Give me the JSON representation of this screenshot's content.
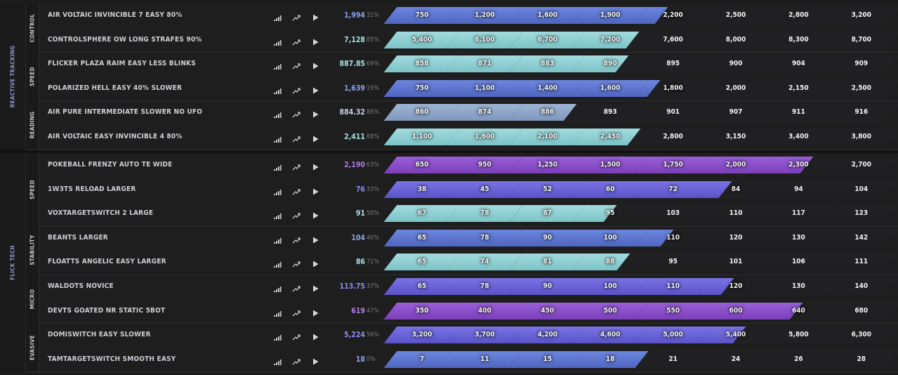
{
  "colors": {
    "blue": "#5d76cf",
    "teal": "#93d3d6",
    "slate": "#8ea6c8",
    "purple": "#8b4fc9",
    "indigo": "#6a63d9"
  },
  "icons": {
    "signal": "signal-bars-icon",
    "trend": "trending-up-icon",
    "play": "play-icon"
  },
  "sections": [
    {
      "label": "REACTIVE TRACKING",
      "groups": [
        {
          "label": "CONTROL",
          "rows": [
            {
              "name": "AIR VOLTAIC INVINCIBLE 7 EASY 80%",
              "score": "1,994",
              "pct": "31%",
              "score_color": "#8aa3ea",
              "color": "blue",
              "fill": 4.31,
              "thresholds": [
                "750",
                "1,200",
                "1,600",
                "1,900",
                "2,200",
                "2,500",
                "2,800",
                "3,200"
              ]
            },
            {
              "name": "CONTROLSPHERE OW LONG STRAFES 90%",
              "score": "7,128",
              "pct": "85%",
              "score_color": "#a6e2e4",
              "color": "teal",
              "fill": 3.85,
              "thresholds": [
                "5,400",
                "6,100",
                "6,700",
                "7,200",
                "7,600",
                "8,000",
                "8,300",
                "8,700"
              ]
            }
          ]
        },
        {
          "label": "SPEED",
          "rows": [
            {
              "name": "FLICKER PLAZA RAIM EASY LESS BLINKS",
              "score": "887.85",
              "pct": "69%",
              "score_color": "#a6e2e4",
              "color": "teal",
              "fill": 3.69,
              "thresholds": [
                "858",
                "871",
                "883",
                "890",
                "895",
                "900",
                "904",
                "909"
              ]
            },
            {
              "name": "POLARIZED HELL EASY 40% SLOWER",
              "score": "1,639",
              "pct": "19%",
              "score_color": "#8aa3ea",
              "color": "blue",
              "fill": 4.19,
              "thresholds": [
                "750",
                "1,100",
                "1,400",
                "1,600",
                "1,800",
                "2,000",
                "2,150",
                "2,500"
              ]
            }
          ]
        },
        {
          "label": "READING",
          "rows": [
            {
              "name": "AIR PURE INTERMEDIATE SLOWER NO UFO",
              "score": "884.32",
              "pct": "86%",
              "score_color": "#c3cde6",
              "color": "slate",
              "fill": 2.86,
              "thresholds": [
                "860",
                "874",
                "886",
                "893",
                "901",
                "907",
                "911",
                "916"
              ]
            },
            {
              "name": "AIR VOLTAIC EASY INVINCIBLE 4 80%",
              "score": "2,411",
              "pct": "88%",
              "score_color": "#a6e2e4",
              "color": "teal",
              "fill": 3.88,
              "thresholds": [
                "1,100",
                "1,600",
                "2,100",
                "2,450",
                "2,800",
                "3,150",
                "3,400",
                "3,800"
              ]
            }
          ]
        }
      ]
    },
    {
      "label": "FLICK TECH",
      "groups": [
        {
          "label": "SPEED",
          "rows": [
            {
              "name": "POKEBALL FRENZY AUTO TE WIDE",
              "score": "2,190",
              "pct": "63%",
              "score_color": "#b07ce6",
              "color": "purple",
              "fill": 6.63,
              "thresholds": [
                "650",
                "950",
                "1,250",
                "1,500",
                "1,750",
                "2,000",
                "2,300",
                "2,700"
              ]
            },
            {
              "name": "1W3TS RELOAD LARGER",
              "score": "76",
              "pct": "33%",
              "score_color": "#8e8cf0",
              "color": "indigo",
              "fill": 5.33,
              "thresholds": [
                "38",
                "45",
                "52",
                "60",
                "72",
                "84",
                "94",
                "104"
              ]
            },
            {
              "name": "VOXTARGETSWITCH 2 LARGE",
              "score": "91",
              "pct": "50%",
              "score_color": "#a6e2e4",
              "color": "teal",
              "fill": 3.5,
              "thresholds": [
                "67",
                "78",
                "87",
                "95",
                "103",
                "110",
                "117",
                "123"
              ]
            }
          ]
        },
        {
          "label": "STABILITY",
          "rows": [
            {
              "name": "BEANTS LARGER",
              "score": "104",
              "pct": "40%",
              "score_color": "#8aa3ea",
              "color": "blue",
              "fill": 4.4,
              "thresholds": [
                "65",
                "78",
                "90",
                "100",
                "110",
                "120",
                "130",
                "142"
              ]
            },
            {
              "name": "FLOATTS ANGELIC EASY LARGER",
              "score": "86",
              "pct": "71%",
              "score_color": "#a6e2e4",
              "color": "teal",
              "fill": 3.71,
              "thresholds": [
                "65",
                "74",
                "81",
                "88",
                "95",
                "101",
                "106",
                "111"
              ]
            }
          ]
        },
        {
          "label": "MICRO",
          "rows": [
            {
              "name": "WALDOTS NOVICE",
              "score": "113.75",
              "pct": "37%",
              "score_color": "#8e8cf0",
              "color": "indigo",
              "fill": 5.37,
              "thresholds": [
                "65",
                "78",
                "90",
                "100",
                "110",
                "120",
                "130",
                "140"
              ]
            },
            {
              "name": "DEVTS GOATED NR STATIC 5BOT",
              "score": "619",
              "pct": "47%",
              "score_color": "#b07ce6",
              "color": "purple",
              "fill": 6.47,
              "thresholds": [
                "350",
                "400",
                "450",
                "500",
                "550",
                "600",
                "640",
                "680"
              ]
            }
          ]
        },
        {
          "label": "EVASIVE",
          "rows": [
            {
              "name": "DOMISWITCH EASY SLOWER",
              "score": "5,224",
              "pct": "56%",
              "score_color": "#8e8cf0",
              "color": "indigo",
              "fill": 5.56,
              "thresholds": [
                "3,200",
                "3,700",
                "4,200",
                "4,600",
                "5,000",
                "5,400",
                "5,800",
                "6,300"
              ]
            },
            {
              "name": "TAMTARGETSWITCH SMOOTH EASY",
              "score": "18",
              "pct": "0%",
              "score_color": "#8aa3ea",
              "color": "blue",
              "fill": 4.0,
              "thresholds": [
                "7",
                "11",
                "15",
                "18",
                "21",
                "24",
                "26",
                "28"
              ]
            }
          ]
        }
      ]
    }
  ]
}
